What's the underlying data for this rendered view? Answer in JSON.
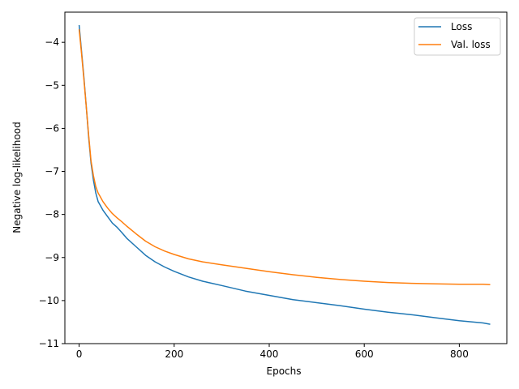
{
  "chart_data": {
    "type": "line",
    "title": "",
    "xlabel": "Epochs",
    "ylabel": "Negative log-likelihood",
    "xlim": [
      -30,
      900
    ],
    "ylim": [
      -11,
      -3.3
    ],
    "xticks": [
      0,
      200,
      400,
      600,
      800
    ],
    "xtick_labels": [
      "0",
      "200",
      "400",
      "600",
      "800"
    ],
    "yticks": [
      -11,
      -10,
      -9,
      -8,
      -7,
      -6,
      -5,
      -4
    ],
    "ytick_labels": [
      "−11",
      "−10",
      "−9",
      "−8",
      "−7",
      "−6",
      "−5",
      "−4"
    ],
    "grid": false,
    "legend_position": "top-right",
    "series": [
      {
        "name": "Loss",
        "color": "#1f77b4",
        "x": [
          0,
          5,
          10,
          15,
          20,
          25,
          30,
          35,
          40,
          45,
          50,
          60,
          70,
          80,
          90,
          100,
          120,
          140,
          160,
          180,
          200,
          230,
          260,
          300,
          350,
          400,
          450,
          500,
          550,
          600,
          650,
          700,
          750,
          800,
          850,
          865
        ],
        "y": [
          -3.6,
          -4.2,
          -4.8,
          -5.5,
          -6.2,
          -6.8,
          -7.2,
          -7.5,
          -7.7,
          -7.8,
          -7.9,
          -8.05,
          -8.2,
          -8.3,
          -8.42,
          -8.55,
          -8.75,
          -8.95,
          -9.1,
          -9.22,
          -9.32,
          -9.45,
          -9.55,
          -9.65,
          -9.78,
          -9.88,
          -9.98,
          -10.05,
          -10.12,
          -10.2,
          -10.27,
          -10.33,
          -10.4,
          -10.47,
          -10.52,
          -10.55
        ]
      },
      {
        "name": "Val. loss",
        "color": "#ff7f0e",
        "x": [
          0,
          5,
          10,
          15,
          20,
          25,
          30,
          35,
          40,
          45,
          50,
          60,
          70,
          80,
          90,
          100,
          120,
          140,
          160,
          180,
          200,
          230,
          260,
          300,
          350,
          400,
          450,
          500,
          550,
          600,
          650,
          700,
          750,
          800,
          850,
          865
        ],
        "y": [
          -3.7,
          -4.25,
          -4.85,
          -5.5,
          -6.15,
          -6.75,
          -7.1,
          -7.35,
          -7.5,
          -7.6,
          -7.7,
          -7.85,
          -7.98,
          -8.08,
          -8.17,
          -8.27,
          -8.45,
          -8.62,
          -8.75,
          -8.85,
          -8.93,
          -9.03,
          -9.1,
          -9.17,
          -9.25,
          -9.33,
          -9.4,
          -9.46,
          -9.51,
          -9.55,
          -9.58,
          -9.6,
          -9.61,
          -9.62,
          -9.62,
          -9.63
        ]
      }
    ]
  }
}
